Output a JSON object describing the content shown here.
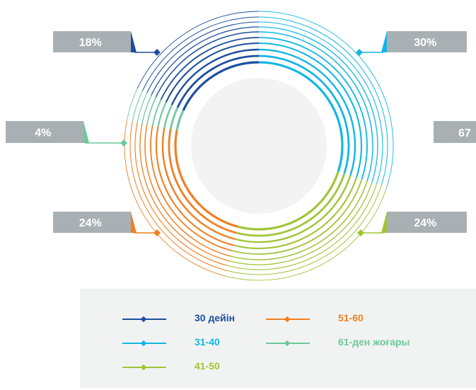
{
  "chart_data": {
    "type": "pie",
    "categories": [
      "30 дейін",
      "31-40",
      "41-50",
      "51-60",
      "61-ден жоғары"
    ],
    "values": [
      18,
      30,
      24,
      24,
      4
    ],
    "labels": [
      "18%",
      "30%",
      "24%",
      "24%",
      "4%"
    ],
    "hidden_label": "67",
    "colors": [
      "#1d4f9e",
      "#12b6e4",
      "#a1c436",
      "#f07f22",
      "#6dc89c"
    ],
    "legend": "bottom"
  }
}
